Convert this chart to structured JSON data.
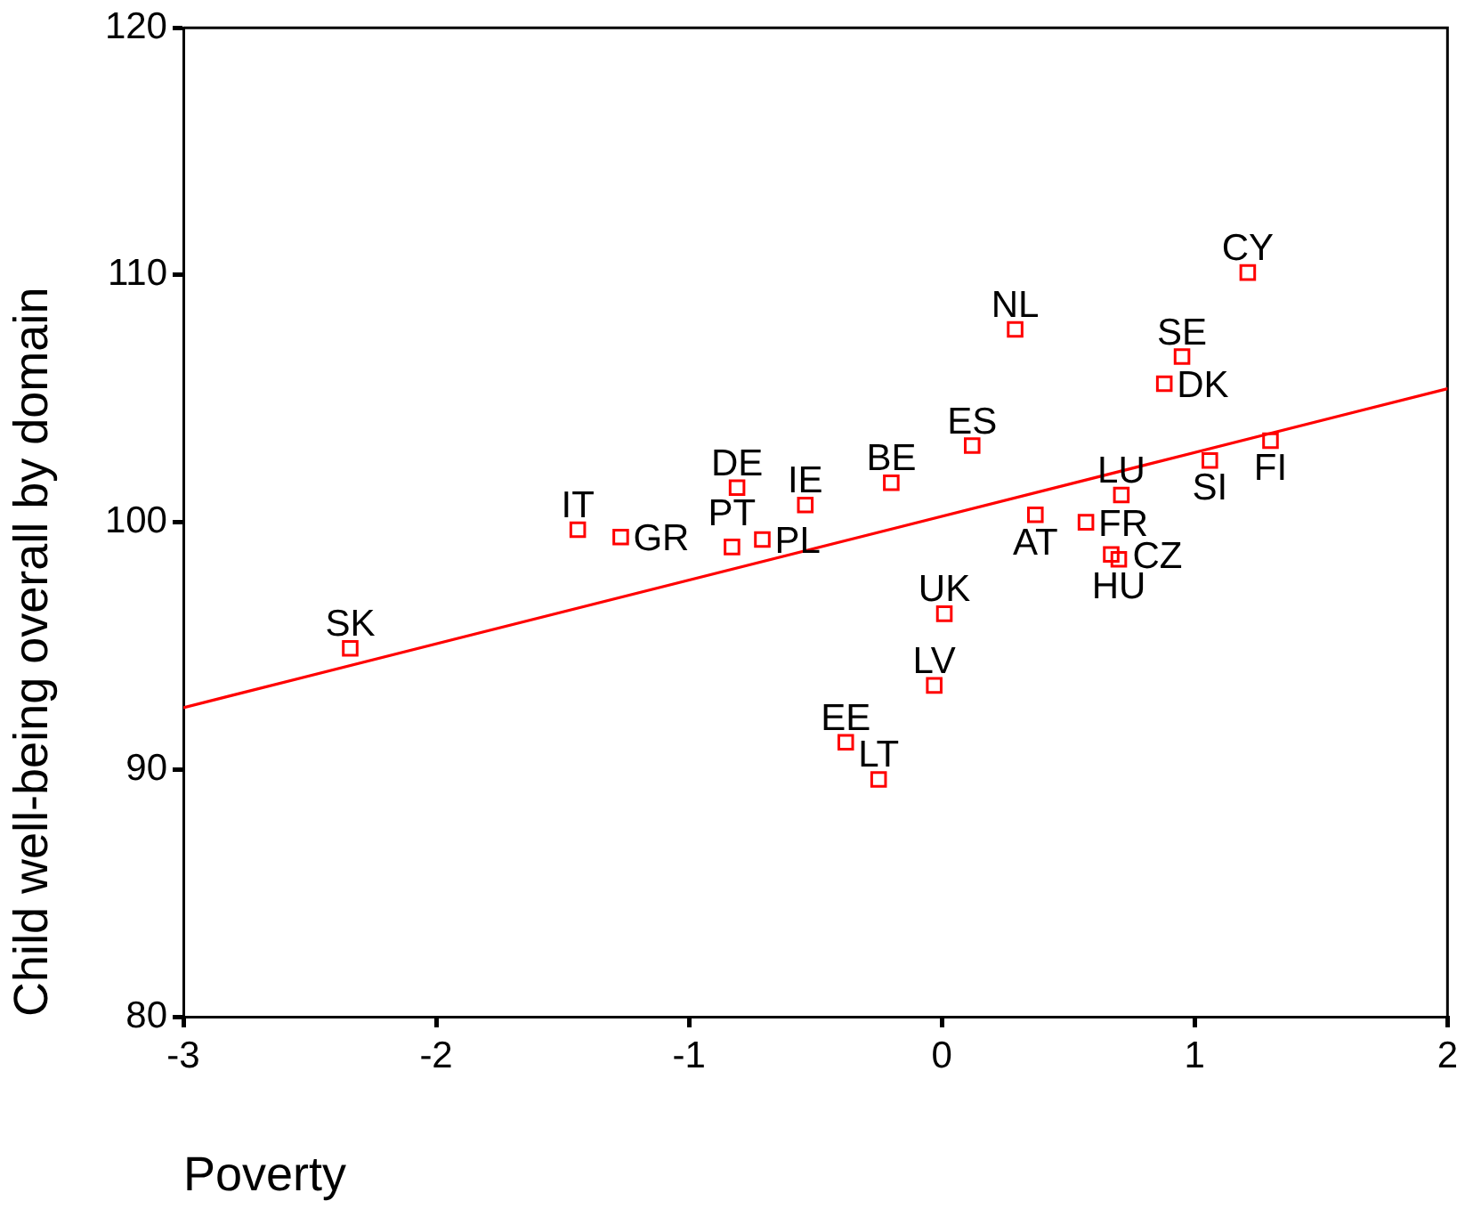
{
  "chart_data": {
    "type": "scatter",
    "xlabel": "Poverty",
    "ylabel": "Child well-being overall by domain",
    "xlim": [
      -3,
      2
    ],
    "ylim": [
      80,
      120
    ],
    "xticks": [
      -3,
      -2,
      -1,
      0,
      1,
      2
    ],
    "yticks": [
      80,
      90,
      100,
      110,
      120
    ],
    "marker": "square",
    "series": [
      {
        "type": "scatter",
        "color": "#ff0000",
        "x": [
          -2.34,
          -1.44,
          -1.27,
          -0.83,
          -0.81,
          -0.71,
          -0.54,
          -0.38,
          -0.25,
          -0.2,
          -0.03,
          0.01,
          0.12,
          0.29,
          0.37,
          0.57,
          0.67,
          0.7,
          0.71,
          0.88,
          0.95,
          1.06,
          1.21,
          1.3
        ],
        "values": [
          94.9,
          99.7,
          99.4,
          99.0,
          101.4,
          99.3,
          100.7,
          91.1,
          89.6,
          101.6,
          93.4,
          96.3,
          103.1,
          107.8,
          100.3,
          100.0,
          98.7,
          98.5,
          101.1,
          105.6,
          106.7,
          102.5,
          110.1,
          103.3
        ],
        "value_labels": [
          "SK",
          "IT",
          "GR",
          "PT",
          "DE",
          "PL",
          "IE",
          "EE",
          "LT",
          "BE",
          "LV",
          "UK",
          "ES",
          "NL",
          "AT",
          "FR",
          "CZ",
          "HU",
          "LU",
          "DK",
          "SE",
          "SI",
          "CY",
          "FI"
        ]
      },
      {
        "type": "line",
        "color": "#ff0000",
        "x": [
          -3,
          2
        ],
        "values": [
          92.5,
          105.4
        ],
        "marker": "none",
        "line_style": "solid"
      }
    ]
  }
}
